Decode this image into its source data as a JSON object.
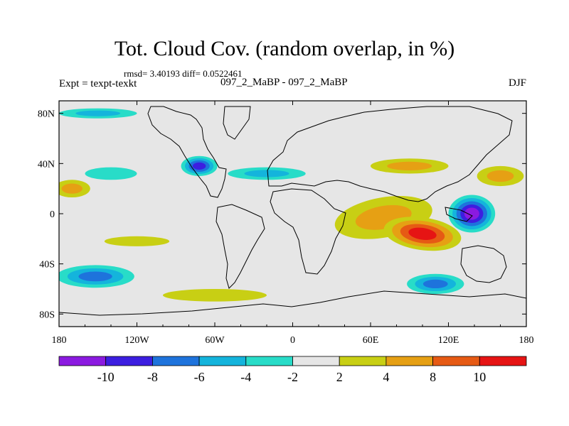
{
  "title": "Tot. Cloud Cov. (random overlap, in %)",
  "stats": "rmsd= 3.40193 diff= 0.0522461",
  "expt_label": "Expt = texpt-texkt",
  "runs_label": "097_2_MaBP - 097_2_MaBP",
  "season": "DJF",
  "colors": {
    "bins": [
      "#8b1ae0",
      "#3c1ee0",
      "#1e73dc",
      "#14b4dc",
      "#28dcc8",
      "#e6e6e6",
      "#c8cf14",
      "#e6a014",
      "#e65a14",
      "#e61414"
    ],
    "coast": "#000000",
    "frame": "#000000"
  },
  "map_data": {
    "projection": "cylindrical-equidistant",
    "lon_range": [
      -180,
      180
    ],
    "lat_range": [
      -90,
      90
    ],
    "x_ticks": [
      {
        "value": -180,
        "label": "180"
      },
      {
        "value": -120,
        "label": "120W"
      },
      {
        "value": -60,
        "label": "60W"
      },
      {
        "value": 0,
        "label": "0"
      },
      {
        "value": 60,
        "label": "60E"
      },
      {
        "value": 120,
        "label": "120E"
      },
      {
        "value": 180,
        "label": "180"
      }
    ],
    "y_ticks": [
      {
        "value": 80,
        "label": "80N"
      },
      {
        "value": 40,
        "label": "40N"
      },
      {
        "value": 0,
        "label": "0"
      },
      {
        "value": -40,
        "label": "40S"
      },
      {
        "value": -80,
        "label": "80S"
      }
    ],
    "features": [
      {
        "name": "w-indian-ocean-positive",
        "cx": 70,
        "cy": -3,
        "rx": 38,
        "ry": 16,
        "rot": -10,
        "bins": [
          6,
          7
        ]
      },
      {
        "name": "e-indian-ocean-max",
        "cx": 100,
        "cy": -16,
        "rx": 30,
        "ry": 13,
        "rot": 8,
        "bins": [
          6,
          7,
          8,
          9
        ]
      },
      {
        "name": "w-pacific-min",
        "cx": 138,
        "cy": 0,
        "rx": 18,
        "ry": 15,
        "rot": 0,
        "bins": [
          4,
          3,
          2,
          1,
          0
        ]
      },
      {
        "name": "s-pacific-negative",
        "cx": -152,
        "cy": -50,
        "rx": 30,
        "ry": 9,
        "rot": 0,
        "bins": [
          4,
          3,
          2
        ]
      },
      {
        "name": "s-atlantic-negative",
        "cx": 110,
        "cy": -56,
        "rx": 22,
        "ry": 8,
        "rot": 0,
        "bins": [
          4,
          3,
          2
        ]
      },
      {
        "name": "n-atlantic-negative",
        "cx": -72,
        "cy": 38,
        "rx": 14,
        "ry": 8,
        "rot": 0,
        "bins": [
          4,
          3,
          2,
          1
        ]
      },
      {
        "name": "n-pacific-positive",
        "cx": -170,
        "cy": 20,
        "rx": 14,
        "ry": 7,
        "rot": 0,
        "bins": [
          6,
          7
        ]
      },
      {
        "name": "n-pacific-negative",
        "cx": -140,
        "cy": 32,
        "rx": 20,
        "ry": 5,
        "rot": 0,
        "bins": [
          4
        ]
      },
      {
        "name": "s-pacific-positive",
        "cx": -120,
        "cy": -22,
        "rx": 25,
        "ry": 4,
        "rot": 0,
        "bins": [
          6
        ]
      },
      {
        "name": "n-europe-negative",
        "cx": -20,
        "cy": 32,
        "rx": 30,
        "ry": 5,
        "rot": 0,
        "bins": [
          4,
          3
        ]
      },
      {
        "name": "asia-positive",
        "cx": 90,
        "cy": 38,
        "rx": 30,
        "ry": 6,
        "rot": 0,
        "bins": [
          6,
          7
        ]
      },
      {
        "name": "w-pacific-north-positive",
        "cx": 160,
        "cy": 30,
        "rx": 18,
        "ry": 8,
        "rot": 0,
        "bins": [
          6,
          7
        ]
      },
      {
        "name": "southern-ocean-positive",
        "cx": -60,
        "cy": -65,
        "rx": 40,
        "ry": 5,
        "rot": 0,
        "bins": [
          6
        ]
      },
      {
        "name": "arctic-negative",
        "cx": -150,
        "cy": 80,
        "rx": 30,
        "ry": 4,
        "rot": 0,
        "bins": [
          4,
          3
        ]
      }
    ]
  },
  "colorbar": {
    "labels": [
      "-10",
      "-8",
      "-6",
      "-4",
      "-2",
      "2",
      "4",
      "8",
      "10"
    ]
  }
}
